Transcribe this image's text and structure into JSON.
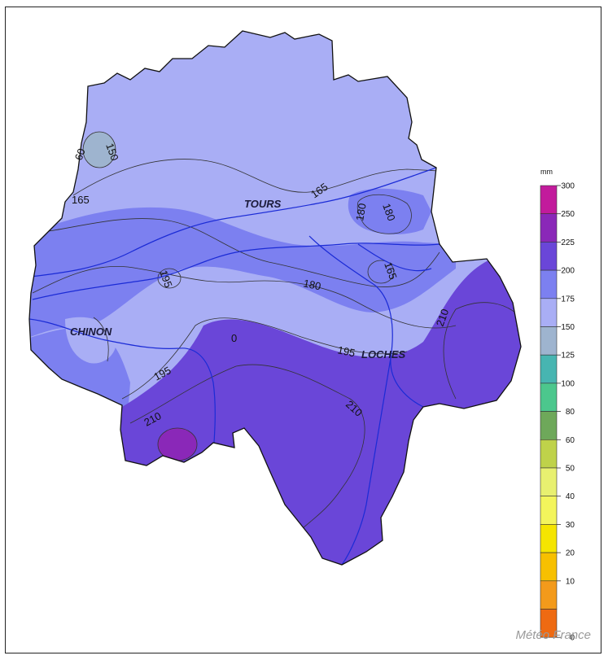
{
  "legend": {
    "unit": "mm",
    "ticks": [
      "300",
      "250",
      "225",
      "200",
      "175",
      "150",
      "125",
      "100",
      "80",
      "60",
      "50",
      "40",
      "30",
      "20",
      "10",
      "0"
    ],
    "colors": [
      "#c21b9c",
      "#8a28b8",
      "#6a46d8",
      "#7c80f0",
      "#a9aef5",
      "#9eb4cf",
      "#47b5b1",
      "#4cc78d",
      "#6ea85a",
      "#bfd24a",
      "#e8f070",
      "#f3f55c",
      "#f5e500",
      "#f7c000",
      "#f39a1b",
      "#ee6a12"
    ]
  },
  "cities": {
    "tours": "TOURS",
    "chinon": "CHINON",
    "loches": "LOCHES"
  },
  "contour_labels": [
    "150",
    "60",
    "165",
    "165",
    "180",
    "180",
    "165",
    "195",
    "180",
    "210",
    "195",
    "0",
    "195",
    "210",
    "210"
  ],
  "credit": "Météo France"
}
